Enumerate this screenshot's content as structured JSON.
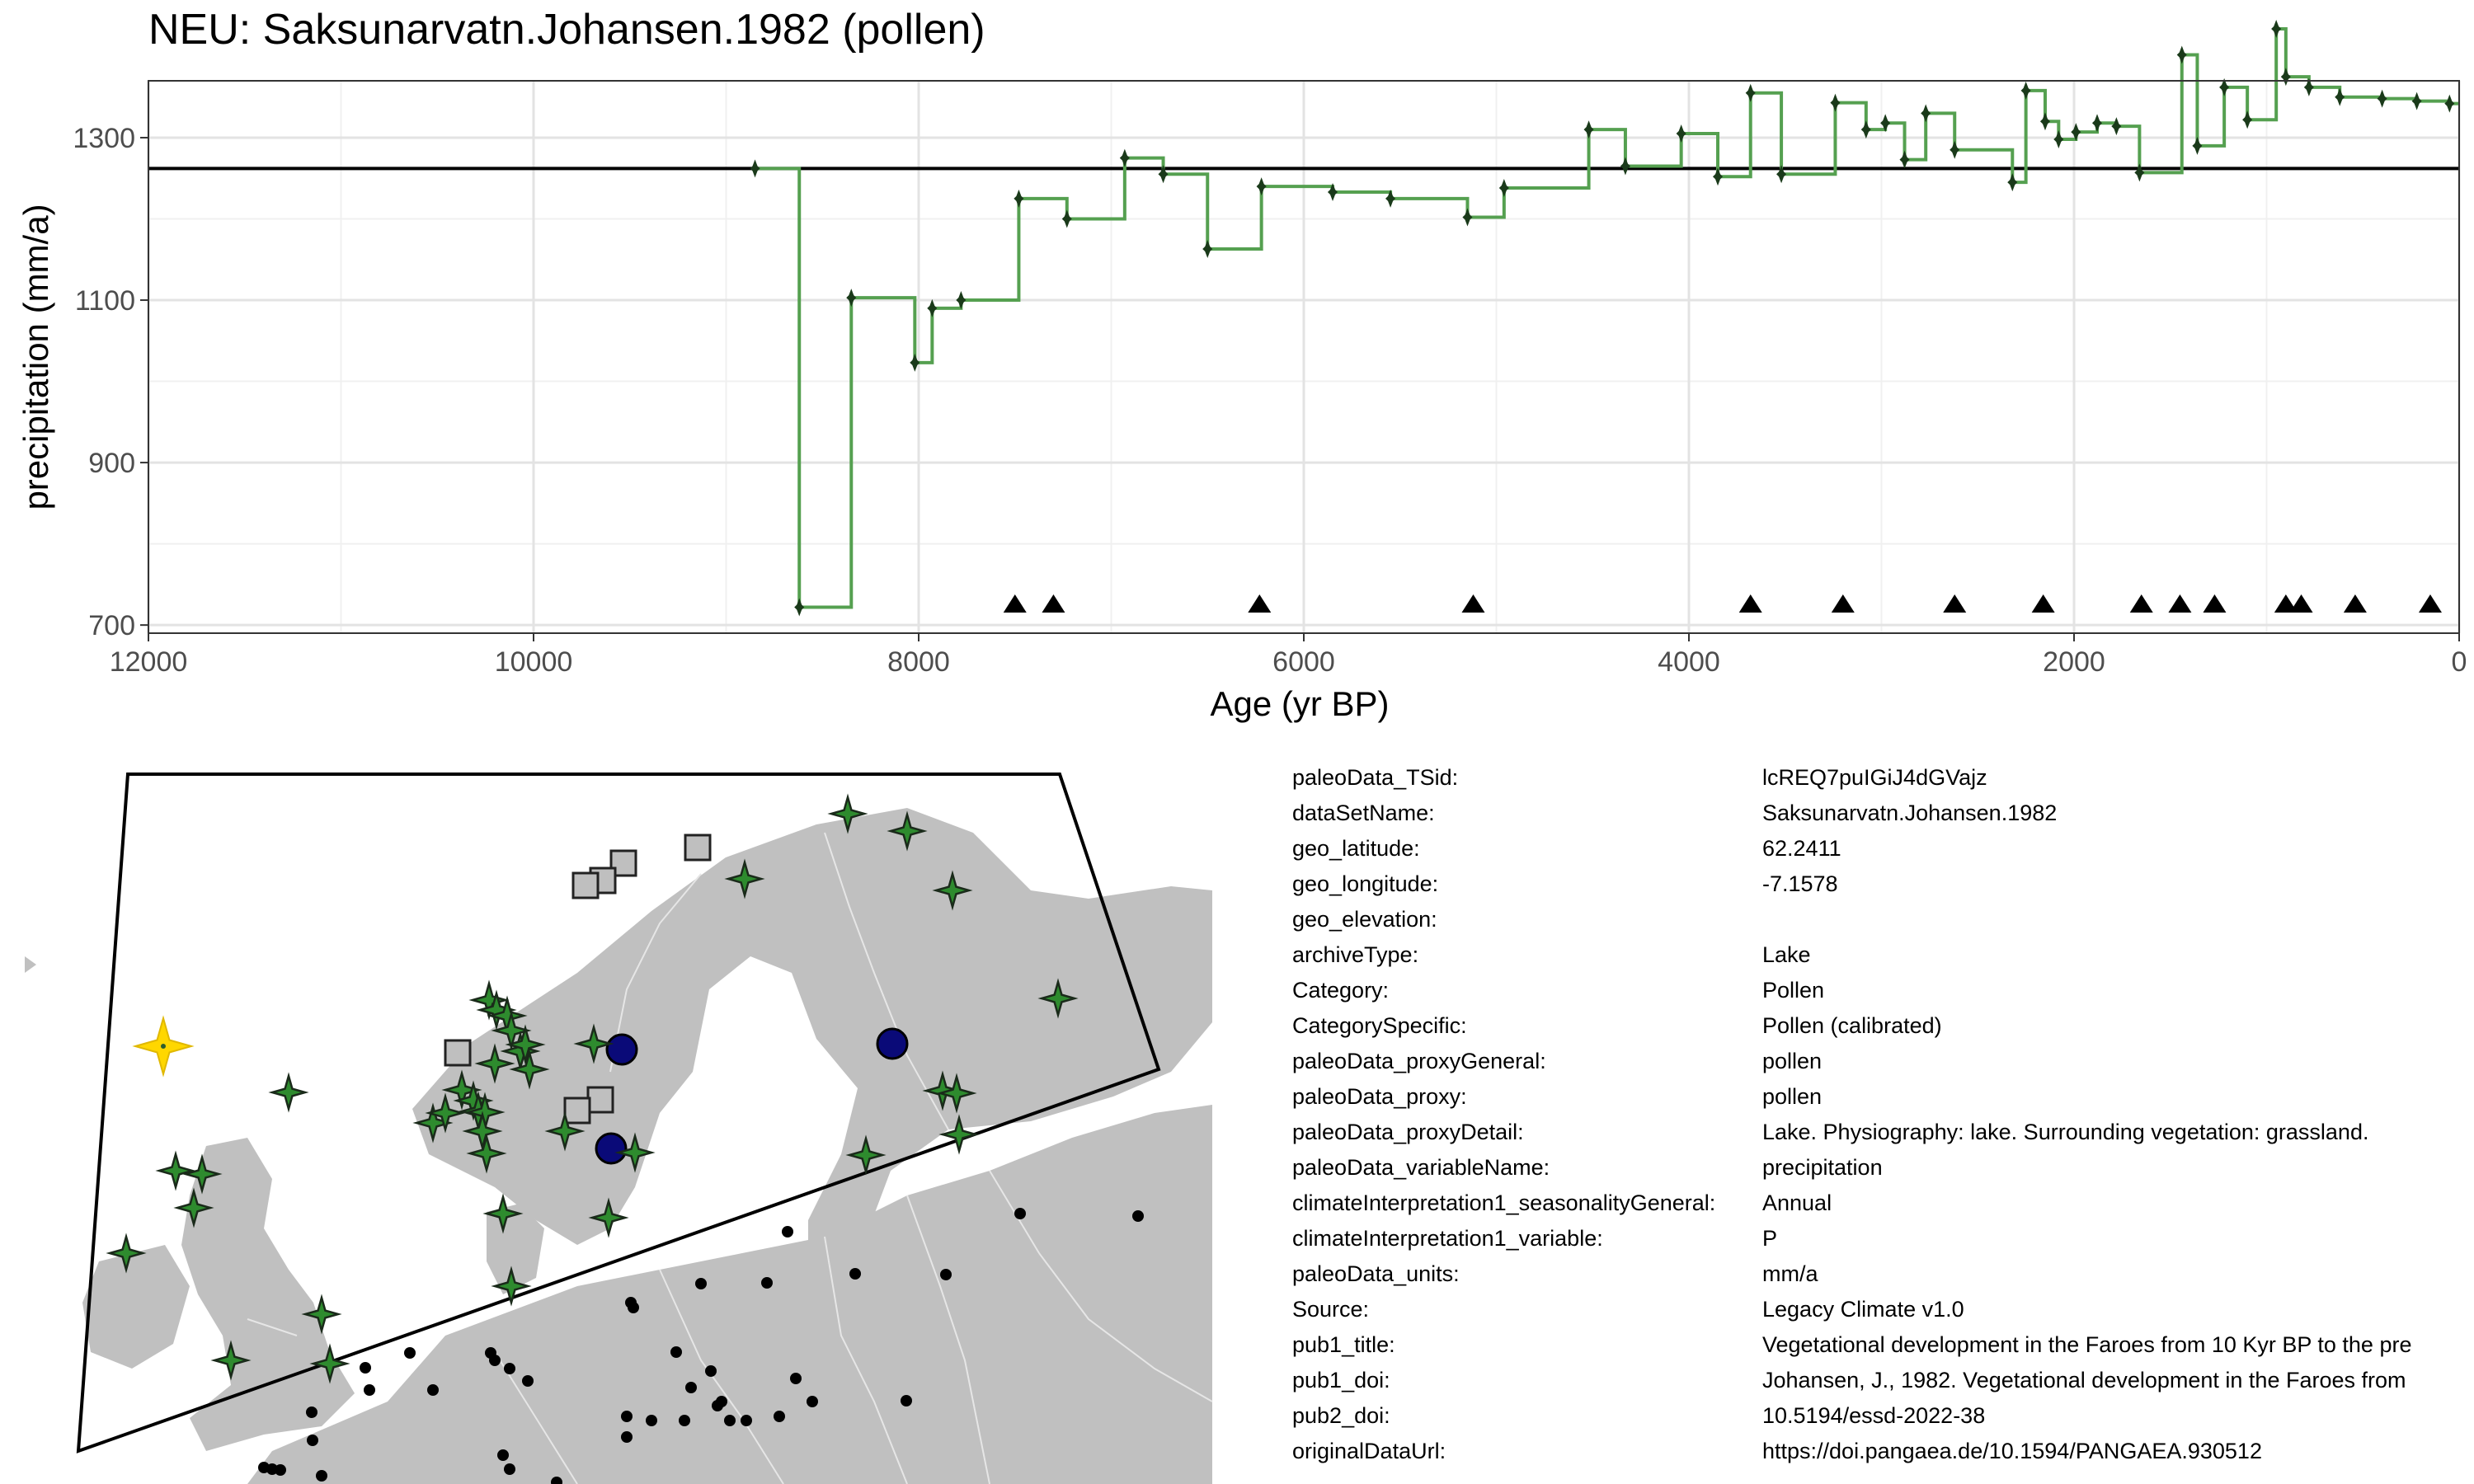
{
  "chart_data": {
    "type": "line",
    "title": "NEU: Saksunarvatn.Johansen.1982 (pollen)",
    "xlabel": "Age (yr BP)",
    "ylabel": "precipitation (mm/a)",
    "xlim": [
      12000,
      0
    ],
    "ylim": [
      690,
      1370
    ],
    "x_ticks": [
      12000,
      10000,
      8000,
      6000,
      4000,
      2000,
      0
    ],
    "y_ticks": [
      700,
      900,
      1100,
      1300
    ],
    "grid": true,
    "reference_line": 1262,
    "series": [
      {
        "color": "#55a050",
        "x": [
          8850,
          8620,
          8350,
          8020,
          7930,
          7780,
          7480,
          7230,
          6930,
          6730,
          6500,
          6220,
          5850,
          5550,
          5150,
          4960,
          4520,
          4330,
          4040,
          3850,
          3680,
          3520,
          3240,
          3080,
          2980,
          2880,
          2770,
          2620,
          2320,
          2250,
          2150,
          2080,
          1990,
          1880,
          1780,
          1660,
          1440,
          1360,
          1220,
          1100,
          950,
          900,
          780,
          620,
          400,
          220,
          50
        ],
        "y": [
          1262,
          722,
          1103,
          1023,
          1090,
          1100,
          1225,
          1200,
          1275,
          1255,
          1163,
          1240,
          1233,
          1225,
          1202,
          1238,
          1310,
          1265,
          1305,
          1252,
          1355,
          1255,
          1343,
          1310,
          1318,
          1273,
          1330,
          1285,
          1245,
          1358,
          1320,
          1298,
          1307,
          1318,
          1314,
          1257,
          1402,
          1290,
          1362,
          1322,
          1434,
          1375,
          1362,
          1350,
          1348,
          1345,
          1342
        ]
      }
    ],
    "age_markers": [
      7500,
      7300,
      6230,
      5120,
      3680,
      3200,
      2620,
      2160,
      1650,
      1450,
      1270,
      900,
      820,
      540,
      150
    ]
  },
  "metadata": [
    {
      "key": "paleoData_TSid:",
      "value": "lcREQ7puIGiJ4dGVajz"
    },
    {
      "key": "dataSetName:",
      "value": "Saksunarvatn.Johansen.1982"
    },
    {
      "key": "geo_latitude:",
      "value": "62.2411"
    },
    {
      "key": "geo_longitude:",
      "value": "-7.1578"
    },
    {
      "key": "geo_elevation:",
      "value": ""
    },
    {
      "key": "archiveType:",
      "value": "Lake"
    },
    {
      "key": "Category:",
      "value": "Pollen"
    },
    {
      "key": "CategorySpecific:",
      "value": "Pollen (calibrated)"
    },
    {
      "key": "paleoData_proxyGeneral:",
      "value": "pollen"
    },
    {
      "key": "paleoData_proxy:",
      "value": "pollen"
    },
    {
      "key": "paleoData_proxyDetail:",
      "value": "Lake. Physiography: lake. Surrounding vegetation: grassland."
    },
    {
      "key": "paleoData_variableName:",
      "value": "precipitation"
    },
    {
      "key": "climateInterpretation1_seasonalityGeneral:",
      "value": "Annual"
    },
    {
      "key": "climateInterpretation1_variable:",
      "value": "P"
    },
    {
      "key": "paleoData_units:",
      "value": "mm/a"
    },
    {
      "key": "Source:",
      "value": "Legacy Climate v1.0"
    },
    {
      "key": "pub1_title:",
      "value": "Vegetational development in the Faroes from 10 Kyr BP to the pre"
    },
    {
      "key": "pub1_doi:",
      "value": "Johansen, J., 1982. Vegetational development in the Faroes from"
    },
    {
      "key": "pub2_doi:",
      "value": "10.5194/essd-2022-38"
    },
    {
      "key": "originalDataUrl:",
      "value": "https://doi.pangaea.de/10.1594/PANGAEA.930512"
    }
  ],
  "map": {
    "land_color": "#c0c0c0",
    "border_color": "#e6e6e6",
    "site_color": "#ffd700",
    "pollen_color": "#2e8b2e",
    "other_proxy_color": "#bfbfbf",
    "third_proxy_color": "#0a0a78",
    "point_color": "#000000"
  }
}
